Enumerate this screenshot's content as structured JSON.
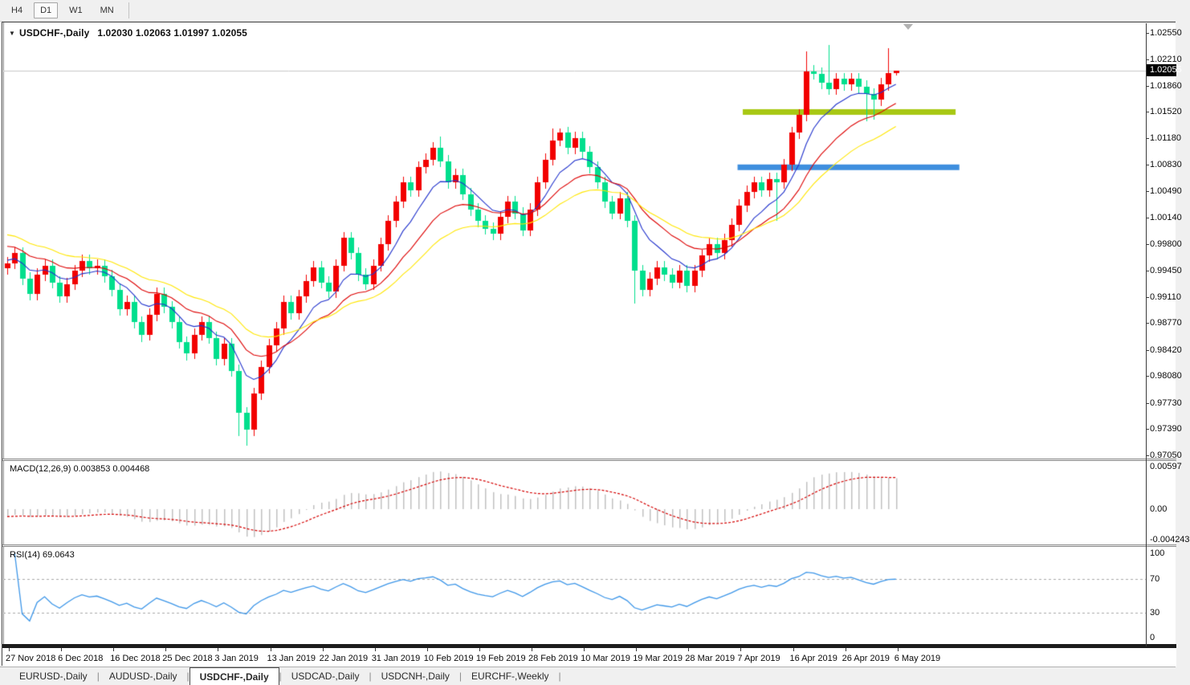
{
  "toolbar": {
    "timeframes": [
      {
        "label": "H4",
        "active": false
      },
      {
        "label": "D1",
        "active": true
      },
      {
        "label": "W1",
        "active": false
      },
      {
        "label": "MN",
        "active": false
      }
    ]
  },
  "chart": {
    "title_symbol": "USDCHF-,Daily",
    "title_ohlc": "1.02030 1.02063 1.01997 1.02055",
    "current_price": "1.02055",
    "price_axis_labels": [
      "1.02550",
      "1.02210",
      "1.01860",
      "1.01520",
      "1.01180",
      "1.00830",
      "1.00490",
      "1.00140",
      "0.99800",
      "0.99450",
      "0.99110",
      "0.98770",
      "0.98420",
      "0.98080",
      "0.97730",
      "0.97390",
      "0.97050"
    ],
    "colors": {
      "bull": "#F20000",
      "bear": "#00DF8D",
      "price_line": "#C8C8C8",
      "macd_hist": "#C0C0C0",
      "macd_signal": "#D40000",
      "rsi_line": "#3D96E8",
      "level_dash": "#A8A8A8"
    },
    "objects": [
      {
        "name": "resistance-line",
        "price": 1.0152,
        "bar_start": 98.5,
        "bar_end": 127.0,
        "color": "#A8C814",
        "thickness": 7
      },
      {
        "name": "support-line",
        "price": 1.008,
        "bar_start": 97.8,
        "bar_end": 127.5,
        "color": "#3E8EDE",
        "thickness": 7
      }
    ]
  },
  "chart_data": {
    "type": "candlestick",
    "symbol": "USDCHF-",
    "timeframe": "Daily",
    "title": "USDCHF-,Daily  1.02030 1.02063 1.01997 1.02055",
    "price_range": [
      0.9705,
      1.0255
    ],
    "x_tick_labels": [
      "27 Nov 2018",
      "6 Dec 2018",
      "16 Dec 2018",
      "25 Dec 2018",
      "3 Jan 2019",
      "13 Jan 2019",
      "22 Jan 2019",
      "31 Jan 2019",
      "10 Feb 2019",
      "19 Feb 2019",
      "28 Feb 2019",
      "10 Mar 2019",
      "19 Mar 2019",
      "28 Mar 2019",
      "7 Apr 2019",
      "16 Apr 2019",
      "26 Apr 2019",
      "6 May 2019"
    ],
    "bars_per_tick": 7,
    "candles": [
      [
        0.9948,
        0.9963,
        0.994,
        0.9955
      ],
      [
        0.9955,
        0.9976,
        0.9947,
        0.9968
      ],
      [
        0.9968,
        0.9976,
        0.9927,
        0.9935
      ],
      [
        0.9935,
        0.9943,
        0.9907,
        0.9915
      ],
      [
        0.9915,
        0.9948,
        0.9907,
        0.994
      ],
      [
        0.994,
        0.996,
        0.9932,
        0.9952
      ],
      [
        0.9952,
        0.996,
        0.9922,
        0.993
      ],
      [
        0.993,
        0.9938,
        0.9904,
        0.9912
      ],
      [
        0.9912,
        0.9936,
        0.9904,
        0.9928
      ],
      [
        0.9928,
        0.9953,
        0.992,
        0.9945
      ],
      [
        0.9945,
        0.9966,
        0.9937,
        0.9958
      ],
      [
        0.9958,
        0.9966,
        0.994,
        0.9948
      ],
      [
        0.9948,
        0.996,
        0.994,
        0.9952
      ],
      [
        0.9952,
        0.996,
        0.993,
        0.9938
      ],
      [
        0.9938,
        0.9946,
        0.9912,
        0.992
      ],
      [
        0.992,
        0.9928,
        0.9887,
        0.9895
      ],
      [
        0.9895,
        0.9913,
        0.9887,
        0.9905
      ],
      [
        0.9905,
        0.9913,
        0.987,
        0.9878
      ],
      [
        0.9878,
        0.9886,
        0.9852,
        0.9862
      ],
      [
        0.9862,
        0.9896,
        0.9854,
        0.9888
      ],
      [
        0.9888,
        0.9923,
        0.988,
        0.9915
      ],
      [
        0.9915,
        0.9923,
        0.989,
        0.9898
      ],
      [
        0.9898,
        0.9906,
        0.987,
        0.9878
      ],
      [
        0.9878,
        0.9886,
        0.9844,
        0.9852
      ],
      [
        0.9852,
        0.986,
        0.9828,
        0.9838
      ],
      [
        0.9838,
        0.987,
        0.983,
        0.9862
      ],
      [
        0.9862,
        0.9886,
        0.9854,
        0.9878
      ],
      [
        0.9878,
        0.9886,
        0.985,
        0.9858
      ],
      [
        0.9858,
        0.9866,
        0.9822,
        0.983
      ],
      [
        0.983,
        0.9858,
        0.9822,
        0.985
      ],
      [
        0.985,
        0.9858,
        0.9807,
        0.9815
      ],
      [
        0.9815,
        0.9823,
        0.973,
        0.976
      ],
      [
        0.976,
        0.9768,
        0.9717,
        0.9738
      ],
      [
        0.9738,
        0.9793,
        0.973,
        0.9785
      ],
      [
        0.9785,
        0.9828,
        0.9777,
        0.982
      ],
      [
        0.982,
        0.9856,
        0.9812,
        0.9848
      ],
      [
        0.9848,
        0.9878,
        0.984,
        0.987
      ],
      [
        0.987,
        0.9913,
        0.9862,
        0.9905
      ],
      [
        0.9905,
        0.9913,
        0.9882,
        0.989
      ],
      [
        0.989,
        0.992,
        0.9882,
        0.9912
      ],
      [
        0.9912,
        0.994,
        0.9904,
        0.9932
      ],
      [
        0.9932,
        0.9958,
        0.9924,
        0.995
      ],
      [
        0.995,
        0.9958,
        0.9922,
        0.993
      ],
      [
        0.993,
        0.9938,
        0.991,
        0.9918
      ],
      [
        0.9918,
        0.996,
        0.991,
        0.9952
      ],
      [
        0.9952,
        0.9996,
        0.9944,
        0.9988
      ],
      [
        0.9988,
        0.9996,
        0.996,
        0.9968
      ],
      [
        0.9968,
        0.9976,
        0.9932,
        0.994
      ],
      [
        0.994,
        0.9948,
        0.992,
        0.9928
      ],
      [
        0.9928,
        0.996,
        0.992,
        0.9952
      ],
      [
        0.9952,
        0.9988,
        0.9944,
        0.998
      ],
      [
        0.998,
        1.0018,
        0.9972,
        1.001
      ],
      [
        1.001,
        1.0043,
        1.0002,
        1.0035
      ],
      [
        1.0035,
        1.0068,
        1.0027,
        1.006
      ],
      [
        1.006,
        1.0068,
        1.0042,
        1.005
      ],
      [
        1.005,
        1.0088,
        1.0042,
        1.008
      ],
      [
        1.008,
        1.0098,
        1.0072,
        1.009
      ],
      [
        1.009,
        1.0113,
        1.0082,
        1.0105
      ],
      [
        1.0105,
        1.012,
        1.008,
        1.0088
      ],
      [
        1.0088,
        1.0096,
        1.0052,
        1.006
      ],
      [
        1.006,
        1.0078,
        1.0052,
        1.007
      ],
      [
        1.007,
        1.0078,
        1.0037,
        1.0045
      ],
      [
        1.0045,
        1.0053,
        1.0017,
        1.0025
      ],
      [
        1.0025,
        1.0033,
        1.0002,
        1.001
      ],
      [
        1.001,
        1.0018,
        0.9992,
        1.0
      ],
      [
        1.0,
        1.0008,
        0.9985,
        0.9993
      ],
      [
        0.9993,
        1.0023,
        0.9985,
        1.0015
      ],
      [
        1.0015,
        1.0043,
        1.0007,
        1.0035
      ],
      [
        1.0035,
        1.0043,
        1.0012,
        1.002
      ],
      [
        1.002,
        1.0028,
        0.999,
        0.9998
      ],
      [
        0.9998,
        1.0033,
        0.999,
        1.0025
      ],
      [
        1.0025,
        1.0068,
        1.0017,
        1.006
      ],
      [
        1.006,
        1.0098,
        1.0052,
        1.009
      ],
      [
        1.009,
        1.0131,
        1.0082,
        1.0115
      ],
      [
        1.0115,
        1.0131,
        1.0107,
        1.0125
      ],
      [
        1.0125,
        1.0133,
        1.0097,
        1.0105
      ],
      [
        1.0105,
        1.0126,
        1.0097,
        1.0118
      ],
      [
        1.0118,
        1.0126,
        1.0092,
        1.01
      ],
      [
        1.01,
        1.0108,
        1.0072,
        1.008
      ],
      [
        1.008,
        1.0088,
        1.0052,
        1.006
      ],
      [
        1.006,
        1.0068,
        1.0027,
        1.0035
      ],
      [
        1.0035,
        1.0043,
        1.0012,
        1.002
      ],
      [
        1.002,
        1.0048,
        1.0012,
        1.004
      ],
      [
        1.004,
        1.0048,
        1.0002,
        1.001
      ],
      [
        1.001,
        1.0018,
        0.9903,
        0.9945
      ],
      [
        0.9945,
        0.9953,
        0.9912,
        0.992
      ],
      [
        0.992,
        0.9943,
        0.9912,
        0.9935
      ],
      [
        0.9935,
        0.9958,
        0.9927,
        0.995
      ],
      [
        0.995,
        0.9958,
        0.9932,
        0.994
      ],
      [
        0.994,
        0.9948,
        0.9922,
        0.993
      ],
      [
        0.993,
        0.9953,
        0.9922,
        0.9945
      ],
      [
        0.9945,
        0.9953,
        0.9917,
        0.9925
      ],
      [
        0.9925,
        0.9953,
        0.9917,
        0.9945
      ],
      [
        0.9945,
        0.9973,
        0.9937,
        0.9965
      ],
      [
        0.9965,
        0.9988,
        0.9957,
        0.998
      ],
      [
        0.998,
        0.9988,
        0.996,
        0.9968
      ],
      [
        0.9968,
        0.9993,
        0.996,
        0.9985
      ],
      [
        0.9985,
        1.0013,
        0.9977,
        1.0005
      ],
      [
        1.0005,
        1.0038,
        0.9997,
        1.003
      ],
      [
        1.003,
        1.0056,
        1.0022,
        1.0048
      ],
      [
        1.0048,
        1.0068,
        1.004,
        1.006
      ],
      [
        1.006,
        1.0068,
        1.0042,
        1.005
      ],
      [
        1.005,
        1.0073,
        1.0042,
        1.0065
      ],
      [
        1.0065,
        1.0073,
        1.001,
        1.006
      ],
      [
        1.006,
        1.0091,
        1.0052,
        1.0083
      ],
      [
        1.0083,
        1.0133,
        1.0075,
        1.0125
      ],
      [
        1.0125,
        1.0156,
        1.0117,
        1.0148
      ],
      [
        1.0148,
        1.0231,
        1.014,
        1.0205
      ],
      [
        1.0205,
        1.0213,
        1.0194,
        1.0202
      ],
      [
        1.0202,
        1.021,
        1.0182,
        1.019
      ],
      [
        1.019,
        1.0239,
        1.0174,
        1.0182
      ],
      [
        1.0182,
        1.0203,
        1.0174,
        1.0195
      ],
      [
        1.0195,
        1.0203,
        1.018,
        1.0188
      ],
      [
        1.0188,
        1.0203,
        1.018,
        1.0195
      ],
      [
        1.0195,
        1.0203,
        1.0177,
        1.0185
      ],
      [
        1.0185,
        1.0193,
        1.014,
        1.0175
      ],
      [
        1.0175,
        1.0183,
        1.0142,
        1.0168
      ],
      [
        1.0168,
        1.0196,
        1.016,
        1.0188
      ],
      [
        1.0188,
        1.0235,
        1.018,
        1.0203
      ],
      [
        1.0203,
        1.02063,
        1.01997,
        1.02055
      ]
    ],
    "moving_averages": [
      {
        "period": 8,
        "color": "#2233CC",
        "seed": 0.996
      },
      {
        "period": 16,
        "color": "#DD0000",
        "seed": 0.998
      },
      {
        "period": 26,
        "color": "#FFE600",
        "seed": 0.9995
      }
    ],
    "macd": {
      "label": "MACD(12,26,9)",
      "values_text": "0.003853 0.004468",
      "axis": [
        {
          "text": "0.00597",
          "value": 0.00597
        },
        {
          "text": "0.00",
          "value": 0
        },
        {
          "text": "-0.004243",
          "value": -0.004243
        }
      ],
      "range": [
        -0.004243,
        0.00597
      ]
    },
    "rsi": {
      "label": "RSI(14)",
      "value_text": "69.0643",
      "levels": [
        70,
        30
      ],
      "axis": [
        {
          "text": "100",
          "value": 100
        },
        {
          "text": "70",
          "value": 70
        },
        {
          "text": "30",
          "value": 30
        },
        {
          "text": "0",
          "value": 0
        }
      ]
    }
  },
  "tabs": [
    {
      "label": "EURUSD-,Daily",
      "active": false
    },
    {
      "label": "AUDUSD-,Daily",
      "active": false
    },
    {
      "label": "USDCHF-,Daily",
      "active": true
    },
    {
      "label": "USDCAD-,Daily",
      "active": false
    },
    {
      "label": "USDCNH-,Daily",
      "active": false
    },
    {
      "label": "EURCHF-,Weekly",
      "active": false
    }
  ]
}
